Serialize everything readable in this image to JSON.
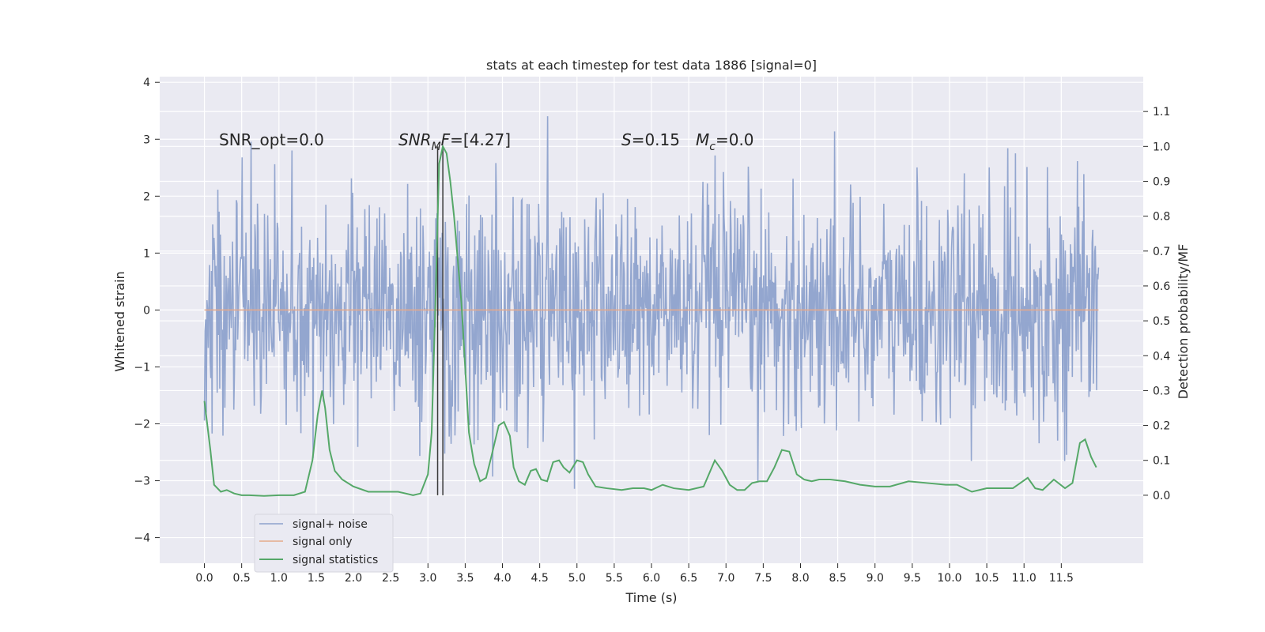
{
  "chart_data": {
    "type": "line",
    "title": "stats at each timestep for test data 1886 [signal=0]",
    "xlabel": "Time (s)",
    "ylabel_left": "Whitened strain",
    "ylabel_right": "Detection probability/MF",
    "xlim": [
      -0.6,
      12.6
    ],
    "ylim_left": [
      -4.45,
      4.1
    ],
    "ylim_right": [
      -0.195,
      1.2
    ],
    "x_ticks": [
      "0.0",
      "0.5",
      "1.0",
      "1.5",
      "2.0",
      "2.5",
      "3.0",
      "3.5",
      "4.0",
      "4.5",
      "5.0",
      "5.5",
      "6.0",
      "6.5",
      "7.0",
      "7.5",
      "8.0",
      "8.5",
      "9.0",
      "9.5",
      "10.0",
      "10.5",
      "11.0",
      "11.5"
    ],
    "y_ticks_left": [
      "4",
      "3",
      "2",
      "1",
      "0",
      "−1",
      "−2",
      "−3",
      "−4"
    ],
    "y_ticks_right": [
      "1.1",
      "1.0",
      "0.9",
      "0.8",
      "0.7",
      "0.6",
      "0.5",
      "0.4",
      "0.3",
      "0.2",
      "0.1",
      "0.0"
    ],
    "grid": true,
    "legend_position": "lower-left",
    "annotations": {
      "snr_opt": "SNR_opt=0.0",
      "snr_mf": {
        "base": "SNR",
        "sub": "M",
        "rest": "F=[4.27]"
      },
      "s": {
        "sym": "S",
        "rest": "=0.15"
      },
      "mc": {
        "sym": "M",
        "sub": "c",
        "rest": "=0.0"
      }
    },
    "vertical_markers": [
      3.13,
      3.2
    ],
    "series": [
      {
        "name": "signal+ noise",
        "axis": "left",
        "color": "#8ea2cc",
        "time_range": [
          0.0,
          12.0
        ],
        "samples": 1400,
        "noise_std": 1.0,
        "max": 3.77,
        "min": -4.1
      },
      {
        "name": "signal only",
        "axis": "left",
        "color": "#e5a98a",
        "x": [
          0.0,
          12.0
        ],
        "y": [
          0.0,
          0.0
        ]
      },
      {
        "name": "signal statistics",
        "axis": "right",
        "color": "#55a868",
        "x": [
          0.0,
          0.08,
          0.13,
          0.22,
          0.3,
          0.4,
          0.5,
          0.6,
          0.8,
          1.0,
          1.2,
          1.35,
          1.45,
          1.52,
          1.58,
          1.62,
          1.68,
          1.75,
          1.85,
          2.0,
          2.2,
          2.4,
          2.6,
          2.8,
          2.9,
          3.0,
          3.05,
          3.1,
          3.15,
          3.2,
          3.25,
          3.3,
          3.35,
          3.45,
          3.55,
          3.62,
          3.7,
          3.78,
          3.85,
          3.95,
          4.02,
          4.1,
          4.15,
          4.22,
          4.3,
          4.38,
          4.45,
          4.52,
          4.6,
          4.68,
          4.76,
          4.82,
          4.9,
          5.0,
          5.08,
          5.15,
          5.25,
          5.4,
          5.6,
          5.75,
          5.9,
          6.0,
          6.15,
          6.3,
          6.5,
          6.7,
          6.85,
          6.95,
          7.05,
          7.15,
          7.25,
          7.35,
          7.45,
          7.55,
          7.65,
          7.75,
          7.85,
          7.95,
          8.05,
          8.15,
          8.25,
          8.4,
          8.6,
          8.8,
          9.0,
          9.2,
          9.45,
          9.7,
          9.95,
          10.1,
          10.3,
          10.5,
          10.7,
          10.85,
          10.95,
          11.05,
          11.15,
          11.25,
          11.4,
          11.55,
          11.65,
          11.75,
          11.82,
          11.9,
          11.97
        ],
        "y": [
          0.27,
          0.13,
          0.03,
          0.01,
          0.015,
          0.005,
          0.0,
          0.0,
          -0.002,
          0.0,
          0.0,
          0.01,
          0.1,
          0.23,
          0.3,
          0.25,
          0.13,
          0.07,
          0.045,
          0.025,
          0.01,
          0.01,
          0.01,
          0.0,
          0.005,
          0.06,
          0.18,
          0.55,
          0.95,
          1.0,
          0.98,
          0.9,
          0.8,
          0.55,
          0.18,
          0.09,
          0.04,
          0.05,
          0.11,
          0.2,
          0.21,
          0.17,
          0.08,
          0.04,
          0.03,
          0.07,
          0.075,
          0.045,
          0.04,
          0.095,
          0.1,
          0.08,
          0.065,
          0.1,
          0.095,
          0.06,
          0.025,
          0.02,
          0.015,
          0.02,
          0.02,
          0.015,
          0.03,
          0.02,
          0.015,
          0.025,
          0.1,
          0.07,
          0.03,
          0.015,
          0.015,
          0.035,
          0.04,
          0.04,
          0.08,
          0.13,
          0.125,
          0.06,
          0.045,
          0.04,
          0.045,
          0.045,
          0.04,
          0.03,
          0.025,
          0.025,
          0.04,
          0.035,
          0.03,
          0.03,
          0.01,
          0.02,
          0.02,
          0.02,
          0.035,
          0.05,
          0.02,
          0.015,
          0.045,
          0.02,
          0.035,
          0.15,
          0.16,
          0.11,
          0.08
        ]
      }
    ]
  }
}
